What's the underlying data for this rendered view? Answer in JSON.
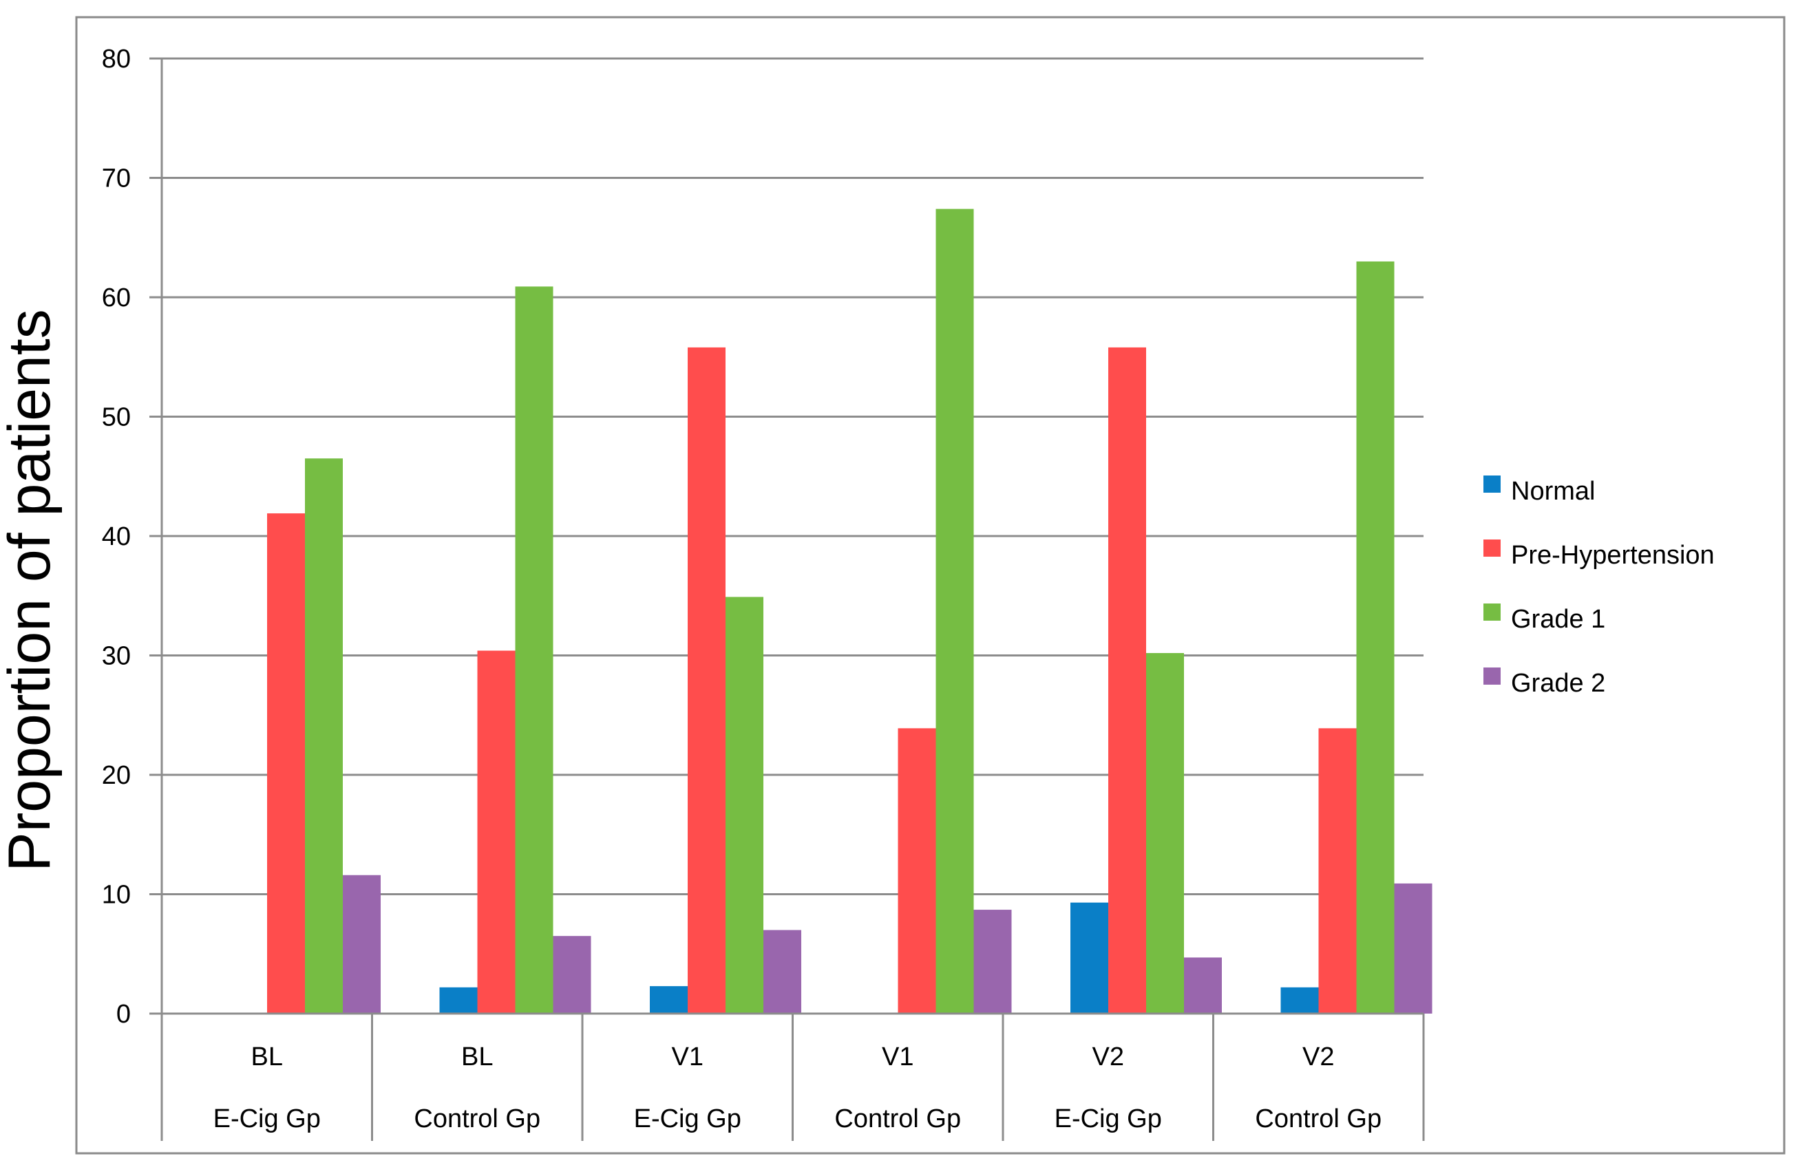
{
  "chart_data": {
    "type": "bar",
    "title": "",
    "xlabel": "",
    "ylabel": "Proportion of patients",
    "ylim": [
      0,
      80
    ],
    "yticks": [
      0,
      10,
      20,
      30,
      40,
      50,
      60,
      70,
      80
    ],
    "grid": true,
    "legend_position": "right",
    "categories": [
      {
        "visit": "BL",
        "group": "E-Cig Gp"
      },
      {
        "visit": "BL",
        "group": "Control Gp"
      },
      {
        "visit": "V1",
        "group": "E-Cig Gp"
      },
      {
        "visit": "V1",
        "group": "Control Gp"
      },
      {
        "visit": "V2",
        "group": "E-Cig Gp"
      },
      {
        "visit": "V2",
        "group": "Control Gp"
      }
    ],
    "series": [
      {
        "name": "Normal",
        "color": "#0a7fc7",
        "values": [
          0,
          2.2,
          2.3,
          0,
          9.3,
          2.2
        ]
      },
      {
        "name": "Pre-Hypertension",
        "color": "#ff4d4d",
        "values": [
          41.9,
          30.4,
          55.8,
          23.9,
          55.8,
          23.9
        ]
      },
      {
        "name": "Grade 1",
        "color": "#76bd43",
        "values": [
          46.5,
          60.9,
          34.9,
          67.4,
          30.2,
          63.0
        ]
      },
      {
        "name": "Grade 2",
        "color": "#9966ad",
        "values": [
          11.6,
          6.5,
          7.0,
          8.7,
          4.7,
          10.9
        ]
      }
    ]
  }
}
